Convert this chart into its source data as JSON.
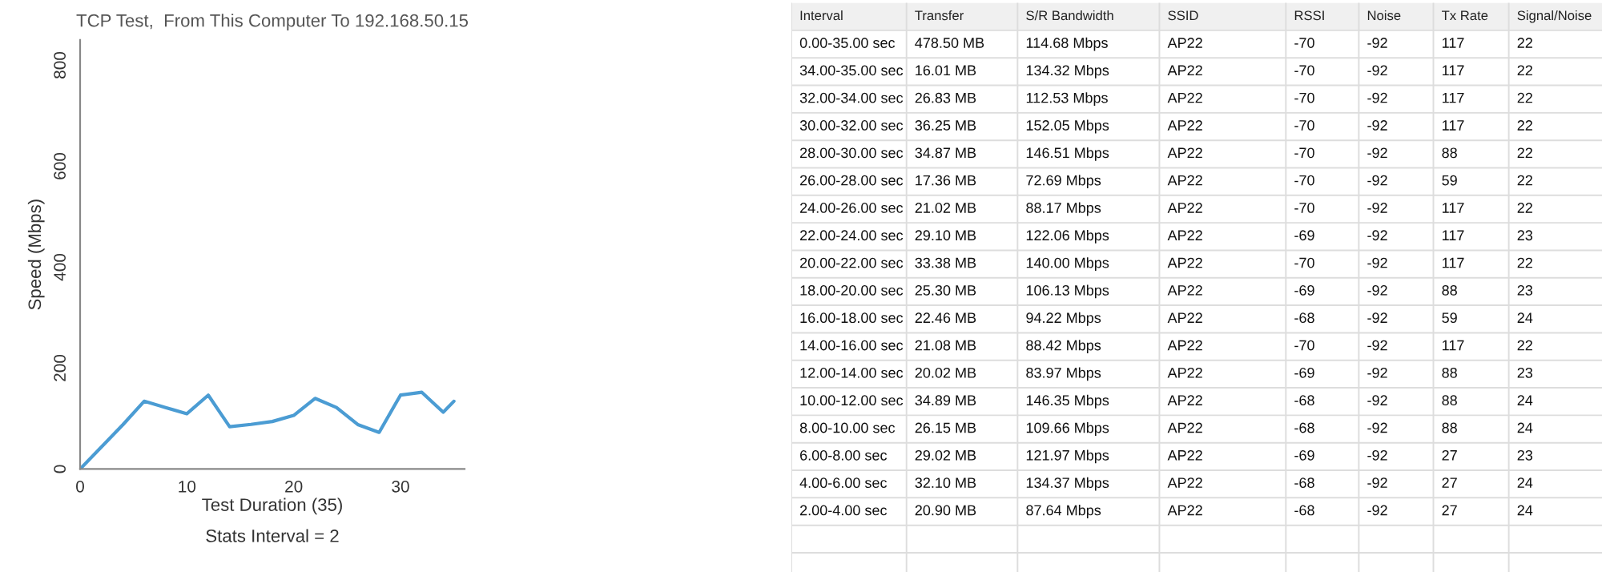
{
  "chart_data": [
    {
      "type": "line",
      "title": "TCP Test,  From This Computer To 192.168.50.15",
      "xlabel": "Test Duration (35)",
      "ylabel": "Speed (Mbps)",
      "annotations": [
        "Stats Interval = 2"
      ],
      "x": [
        0,
        4,
        6,
        8,
        10,
        12,
        14,
        16,
        18,
        20,
        22,
        24,
        26,
        28,
        30,
        32,
        34,
        35
      ],
      "series": [
        {
          "color": "#4b9cd3",
          "values": [
            0,
            87.64,
            134.37,
            121.97,
            109.66,
            146.35,
            83.97,
            88.42,
            94.22,
            106.13,
            140.0,
            122.06,
            88.17,
            72.69,
            146.51,
            152.05,
            112.53,
            134.32
          ]
        }
      ],
      "xlim": [
        0,
        36
      ],
      "ylim": [
        0,
        850
      ],
      "xticks": [
        0,
        10,
        20,
        30
      ],
      "yticks": [
        0,
        200,
        400,
        600,
        800
      ],
      "grid": false,
      "marker": "none",
      "line_style": "solid"
    },
    {
      "type": "other",
      "categories": [
        "Interval",
        "Transfer",
        "S/R Bandwidth",
        "SSID",
        "RSSI",
        "Noise",
        "Tx Rate",
        "Signal/Noise"
      ],
      "cell_labels": [
        [
          "0.00-35.00 sec",
          "478.50 MB",
          "114.68 Mbps",
          "AP22",
          "-70",
          "-92",
          "117",
          "22"
        ],
        [
          "34.00-35.00 sec",
          "16.01 MB",
          "134.32 Mbps",
          "AP22",
          "-70",
          "-92",
          "117",
          "22"
        ],
        [
          "32.00-34.00 sec",
          "26.83 MB",
          "112.53 Mbps",
          "AP22",
          "-70",
          "-92",
          "117",
          "22"
        ],
        [
          "30.00-32.00 sec",
          "36.25 MB",
          "152.05 Mbps",
          "AP22",
          "-70",
          "-92",
          "117",
          "22"
        ],
        [
          "28.00-30.00 sec",
          "34.87 MB",
          "146.51 Mbps",
          "AP22",
          "-70",
          "-92",
          "88",
          "22"
        ],
        [
          "26.00-28.00 sec",
          "17.36 MB",
          "72.69 Mbps",
          "AP22",
          "-70",
          "-92",
          "59",
          "22"
        ],
        [
          "24.00-26.00 sec",
          "21.02 MB",
          "88.17 Mbps",
          "AP22",
          "-70",
          "-92",
          "117",
          "22"
        ],
        [
          "22.00-24.00 sec",
          "29.10 MB",
          "122.06 Mbps",
          "AP22",
          "-69",
          "-92",
          "117",
          "23"
        ],
        [
          "20.00-22.00 sec",
          "33.38 MB",
          "140.00 Mbps",
          "AP22",
          "-70",
          "-92",
          "117",
          "22"
        ],
        [
          "18.00-20.00 sec",
          "25.30 MB",
          "106.13 Mbps",
          "AP22",
          "-69",
          "-92",
          "88",
          "23"
        ],
        [
          "16.00-18.00 sec",
          "22.46 MB",
          "94.22 Mbps",
          "AP22",
          "-68",
          "-92",
          "59",
          "24"
        ],
        [
          "14.00-16.00 sec",
          "21.08 MB",
          "88.42 Mbps",
          "AP22",
          "-70",
          "-92",
          "117",
          "22"
        ],
        [
          "12.00-14.00 sec",
          "20.02 MB",
          "83.97 Mbps",
          "AP22",
          "-69",
          "-92",
          "88",
          "23"
        ],
        [
          "10.00-12.00 sec",
          "34.89 MB",
          "146.35 Mbps",
          "AP22",
          "-68",
          "-92",
          "88",
          "24"
        ],
        [
          "8.00-10.00 sec",
          "26.15 MB",
          "109.66 Mbps",
          "AP22",
          "-68",
          "-92",
          "88",
          "24"
        ],
        [
          "6.00-8.00 sec",
          "29.02 MB",
          "121.97 Mbps",
          "AP22",
          "-69",
          "-92",
          "27",
          "23"
        ],
        [
          "4.00-6.00 sec",
          "32.10 MB",
          "134.37 Mbps",
          "AP22",
          "-68",
          "-92",
          "27",
          "24"
        ],
        [
          "2.00-4.00 sec",
          "20.90 MB",
          "87.64 Mbps",
          "AP22",
          "-68",
          "-92",
          "27",
          "24"
        ]
      ]
    }
  ]
}
